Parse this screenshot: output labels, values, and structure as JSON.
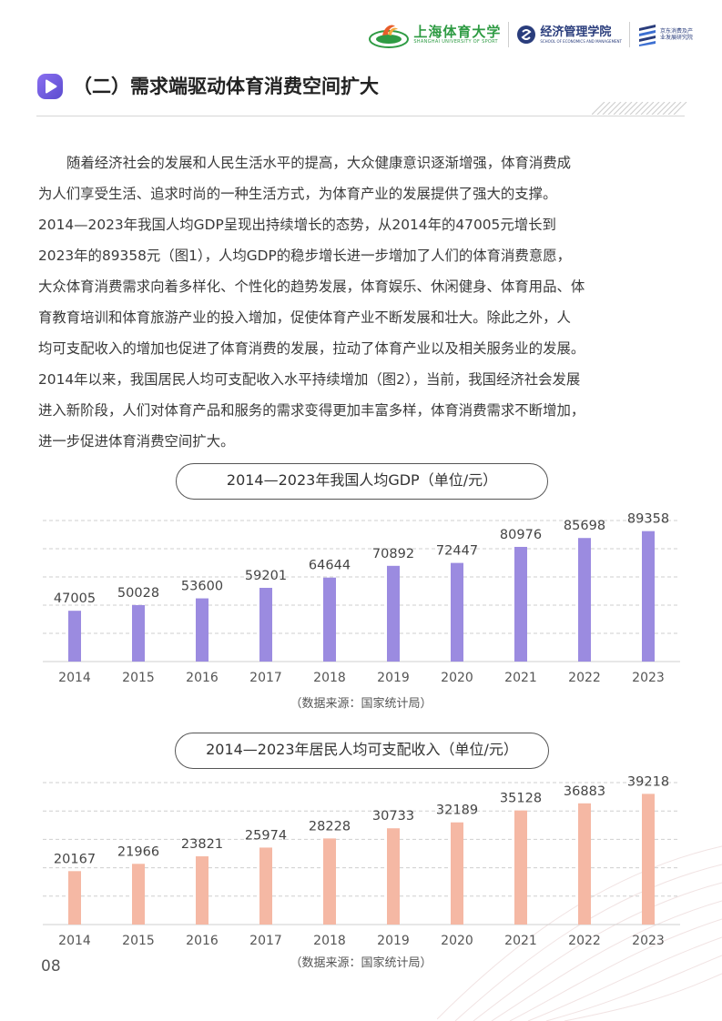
{
  "header": {
    "university_cn": "上海体育大学",
    "university_en": "SHANGHAI UNIVERSITY OF SPORT",
    "school_cn": "经济管理学院",
    "school_en": "SCHOOL OF ECONOMICS AND MANAGEMENT",
    "institute_cn": "京东消费及产业发展研究院",
    "brand_green": "#2e9b43",
    "brand_navy": "#2a3d7c"
  },
  "section": {
    "title": "（二）需求端驱动体育消费空间扩大",
    "icon": "play-circle-icon",
    "accent": "#7b63e0"
  },
  "paragraph_lines": [
    "随着经济社会的发展和人民生活水平的提高，大众健康意识逐渐增强，体育消费成",
    "为人们享受生活、追求时尚的一种生活方式，为体育产业的发展提供了强大的支撑。",
    "2014—2023年我国人均GDP呈现出持续增长的态势，从2014年的47005元增长到",
    "2023年的89358元（图1），人均GDP的稳步增长进一步增加了人们的体育消费意愿，",
    "大众体育消费需求向着多样化、个性化的趋势发展，体育娱乐、休闲健身、体育用品、体",
    "育教育培训和体育旅游产业的投入增加，促使体育产业不断发展和壮大。除此之外，人",
    "均可支配收入的增加也促进了体育消费的发展，拉动了体育产业以及相关服务业的发展。",
    "2014年以来，我国居民人均可支配收入水平持续增加（图2），当前，我国经济社会发展",
    "进入新阶段，人们对体育产品和服务的需求变得更加丰富多样，体育消费需求不断增加，",
    "进一步促进体育消费空间扩大。"
  ],
  "chart_data": [
    {
      "type": "bar",
      "title": "2014—2023年我国人均GDP（单位/元）",
      "categories": [
        "2014",
        "2015",
        "2016",
        "2017",
        "2018",
        "2019",
        "2020",
        "2021",
        "2022",
        "2023"
      ],
      "values": [
        47005,
        50028,
        53600,
        59201,
        64644,
        70892,
        72447,
        80976,
        85698,
        89358
      ],
      "ylim": [
        20000,
        95000
      ],
      "grid": true,
      "color": "#9b8be0",
      "source": "（数据来源：国家统计局）"
    },
    {
      "type": "bar",
      "title": "2014—2023年居民人均可支配收入（单位/元）",
      "categories": [
        "2014",
        "2015",
        "2016",
        "2017",
        "2018",
        "2019",
        "2020",
        "2021",
        "2022",
        "2023"
      ],
      "values": [
        20167,
        21966,
        23821,
        25974,
        28228,
        30733,
        32189,
        35128,
        36883,
        39218
      ],
      "ylim": [
        7000,
        42000
      ],
      "grid": true,
      "color": "#f5b8a4",
      "source": "（数据来源：国家统计局）"
    }
  ],
  "page_number": "08"
}
